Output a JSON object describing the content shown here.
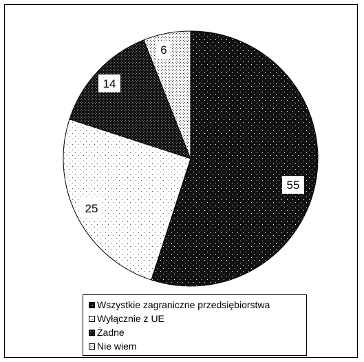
{
  "chart_data": {
    "type": "pie",
    "slices": [
      {
        "label": "Wszystkie zagraniczne przedsiębiorstwa",
        "value": 55,
        "value_label": "55",
        "fill": "dark-dotted",
        "color": "#111111"
      },
      {
        "label": "Wyłącznie z UE",
        "value": 25,
        "value_label": "25",
        "fill": "light-dotted",
        "color": "#ffffff"
      },
      {
        "label": "Żadne",
        "value": 14,
        "value_label": "14",
        "fill": "dark-checkered",
        "color": "#1a1a1a"
      },
      {
        "label": "Nie wiem",
        "value": 6,
        "value_label": "6",
        "fill": "light-checkered",
        "color": "#ffffff"
      }
    ],
    "start_angle_deg": 0,
    "direction": "clockwise",
    "legend_position": "bottom"
  }
}
